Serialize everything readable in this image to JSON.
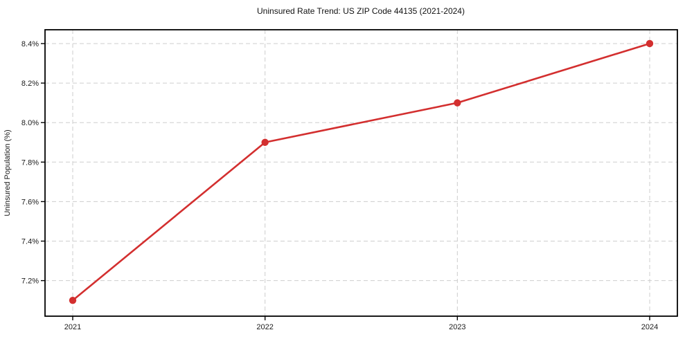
{
  "chart_data": {
    "type": "line",
    "title": "Uninsured Rate Trend: US ZIP Code 44135 (2021-2024)",
    "xlabel": "",
    "ylabel": "Uninsured Population (%)",
    "x": [
      2021,
      2022,
      2023,
      2024
    ],
    "xtick_labels": [
      "2021",
      "2022",
      "2023",
      "2024"
    ],
    "series": [
      {
        "name": "uninsured-rate",
        "values": [
          7.1,
          7.9,
          8.1,
          8.4
        ]
      }
    ],
    "ylim": [
      7.02,
      8.47
    ],
    "yticks": [
      7.2,
      7.4,
      7.6,
      7.8,
      8.0,
      8.2,
      8.4
    ],
    "ytick_labels": [
      "7.2%",
      "7.4%",
      "7.6%",
      "7.8%",
      "8.0%",
      "8.2%",
      "8.4%"
    ],
    "grid": true,
    "grid_style": "dashed",
    "legend": false,
    "colors": {
      "line": "#d32f2f",
      "marker": "#d32f2f",
      "grid": "#cdcdcd",
      "spine": "#000000",
      "text": "#1a1a1a",
      "background": "#ffffff"
    }
  }
}
